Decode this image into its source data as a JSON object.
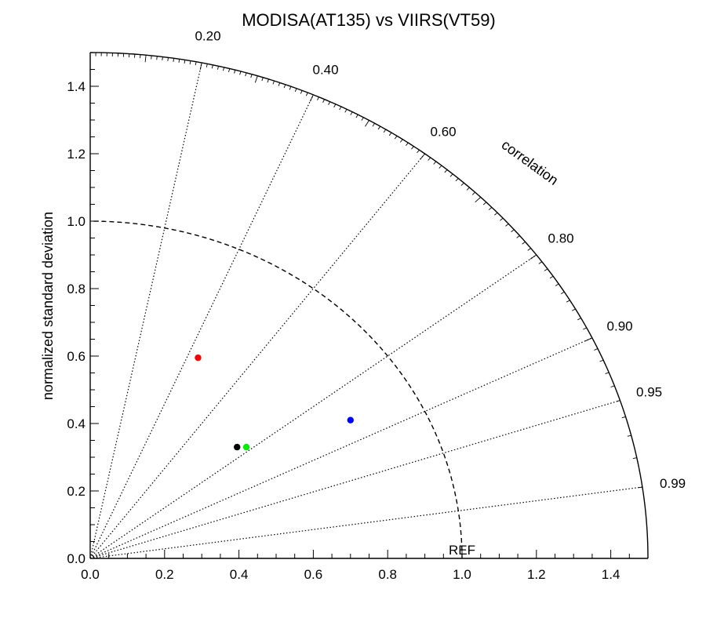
{
  "chart_data": {
    "type": "scatter",
    "subtype": "taylor-diagram",
    "title": "MODISA(AT135) vs VIIRS(VT59)",
    "xlabel": "",
    "ylabel": "normalized standard deviation",
    "arc_label": "correlation",
    "reference_label": "REF",
    "xlim": [
      0,
      1.5
    ],
    "ylim": [
      0,
      1.5
    ],
    "x_ticks": [
      "0.0",
      "0.2",
      "0.4",
      "0.6",
      "0.8",
      "1.0",
      "1.2",
      "1.4"
    ],
    "y_ticks": [
      "0.0",
      "0.2",
      "0.4",
      "0.6",
      "0.8",
      "1.0",
      "1.2",
      "1.4"
    ],
    "correlation_ticks": [
      "0.20",
      "0.40",
      "0.60",
      "0.80",
      "0.90",
      "0.95",
      "0.99"
    ],
    "reference_std": 1.0,
    "max_std": 1.5,
    "points": [
      {
        "x": 0.29,
        "y": 0.595,
        "color": "#ff0000"
      },
      {
        "x": 0.395,
        "y": 0.33,
        "color": "#000000"
      },
      {
        "x": 0.42,
        "y": 0.33,
        "color": "#00ee00"
      },
      {
        "x": 0.7,
        "y": 0.41,
        "color": "#0000ff"
      }
    ]
  }
}
